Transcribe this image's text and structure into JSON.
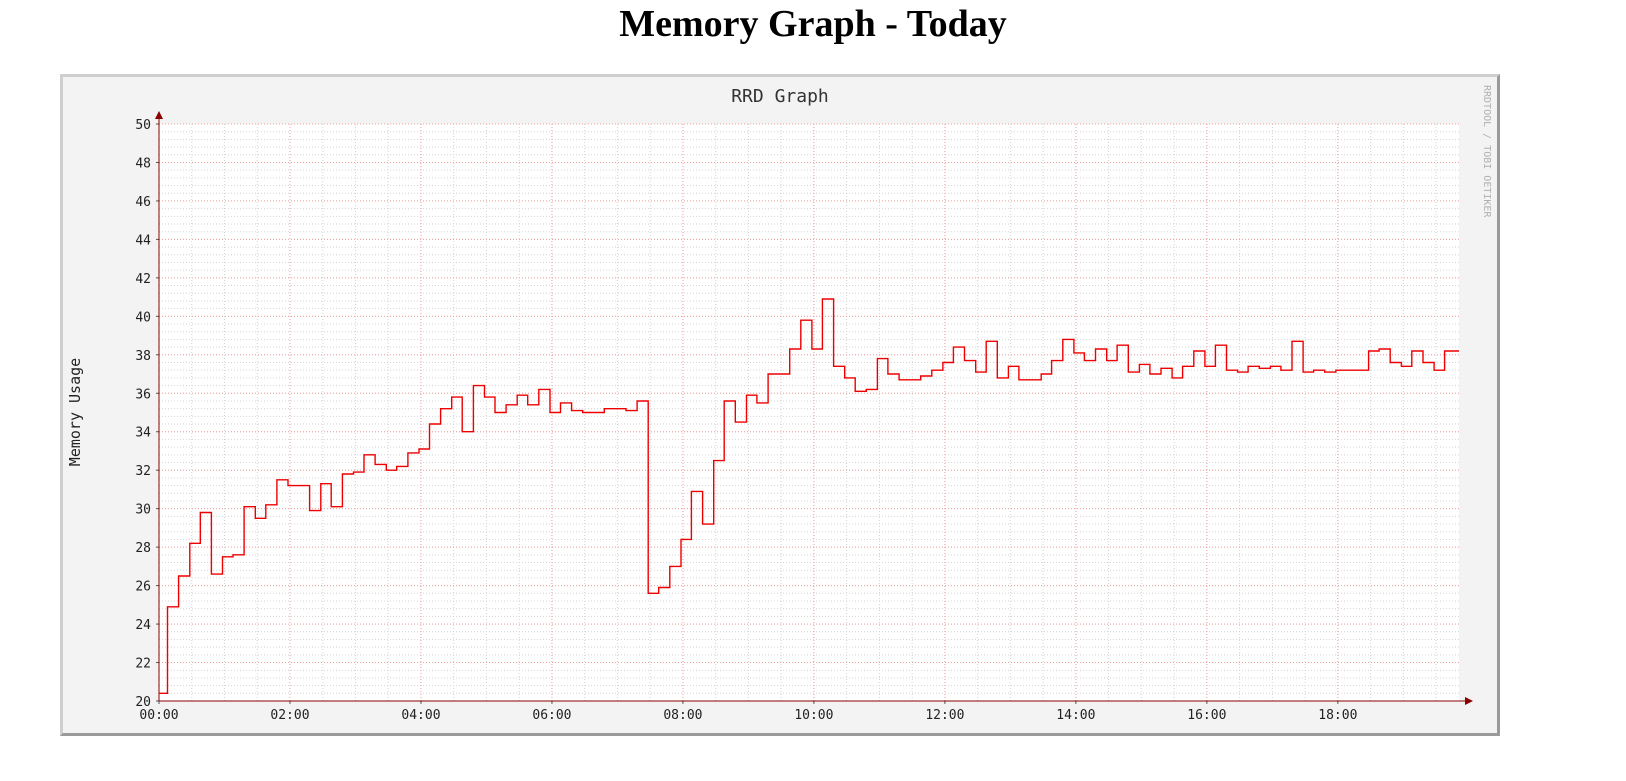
{
  "page": {
    "title": "Memory Graph - Today"
  },
  "chart_data": {
    "type": "line",
    "step": true,
    "title": "RRD Graph",
    "ylabel": "Memory Usage",
    "watermark": "RRDTOOL / TOBI OETIKER",
    "ylim": [
      20,
      50
    ],
    "xlim": [
      0,
      19.85
    ],
    "y_ticks": [
      20,
      22,
      24,
      26,
      28,
      30,
      32,
      34,
      36,
      38,
      40,
      42,
      44,
      46,
      48,
      50
    ],
    "x_ticks": [
      {
        "value": 0,
        "label": "00:00"
      },
      {
        "value": 2,
        "label": "02:00"
      },
      {
        "value": 4,
        "label": "04:00"
      },
      {
        "value": 6,
        "label": "06:00"
      },
      {
        "value": 8,
        "label": "08:00"
      },
      {
        "value": 10,
        "label": "10:00"
      },
      {
        "value": 12,
        "label": "12:00"
      },
      {
        "value": 14,
        "label": "14:00"
      },
      {
        "value": 16,
        "label": "16:00"
      },
      {
        "value": 18,
        "label": "18:00"
      }
    ],
    "grid": true,
    "line_color": "#ee0000",
    "grid_color": "#f2a0a0",
    "minor_grid_color": "#d4d4d4",
    "axis_color": "#8b0000",
    "series": [
      {
        "name": "",
        "x": [
          0.0,
          0.13,
          0.3,
          0.47,
          0.63,
          0.8,
          0.97,
          1.13,
          1.3,
          1.47,
          1.63,
          1.8,
          1.97,
          2.13,
          2.3,
          2.47,
          2.63,
          2.8,
          2.97,
          3.13,
          3.3,
          3.47,
          3.63,
          3.8,
          3.97,
          4.13,
          4.3,
          4.47,
          4.63,
          4.8,
          4.97,
          5.13,
          5.3,
          5.47,
          5.63,
          5.8,
          5.97,
          6.13,
          6.3,
          6.47,
          6.63,
          6.8,
          6.97,
          7.13,
          7.3,
          7.47,
          7.63,
          7.8,
          7.97,
          8.13,
          8.3,
          8.47,
          8.63,
          8.8,
          8.97,
          9.13,
          9.3,
          9.47,
          9.63,
          9.8,
          9.97,
          10.13,
          10.3,
          10.47,
          10.63,
          10.8,
          10.97,
          11.13,
          11.3,
          11.47,
          11.63,
          11.8,
          11.97,
          12.13,
          12.3,
          12.47,
          12.63,
          12.8,
          12.97,
          13.13,
          13.3,
          13.47,
          13.63,
          13.8,
          13.97,
          14.13,
          14.3,
          14.47,
          14.63,
          14.8,
          14.97,
          15.13,
          15.3,
          15.47,
          15.63,
          15.8,
          15.97,
          16.13,
          16.3,
          16.47,
          16.63,
          16.8,
          16.97,
          17.13,
          17.3,
          17.47,
          17.63,
          17.8,
          17.97,
          18.13,
          18.3,
          18.47,
          18.63,
          18.8,
          18.97,
          19.13,
          19.3,
          19.47,
          19.63,
          19.85
        ],
        "y": [
          20.4,
          24.9,
          26.5,
          28.2,
          29.8,
          26.6,
          27.5,
          27.6,
          30.1,
          29.5,
          30.2,
          31.5,
          31.2,
          31.2,
          29.9,
          31.3,
          30.1,
          31.8,
          31.9,
          32.8,
          32.3,
          32.0,
          32.2,
          32.9,
          33.1,
          34.4,
          35.2,
          35.8,
          34.0,
          36.4,
          35.8,
          35.0,
          35.4,
          35.9,
          35.4,
          36.2,
          35.0,
          35.5,
          35.1,
          35.0,
          35.0,
          35.2,
          35.2,
          35.1,
          35.6,
          25.6,
          25.9,
          27.0,
          28.4,
          30.9,
          29.2,
          32.5,
          35.6,
          34.5,
          35.9,
          35.5,
          37.0,
          37.0,
          38.3,
          39.8,
          38.3,
          40.9,
          37.4,
          36.8,
          36.1,
          36.2,
          37.8,
          37.0,
          36.7,
          36.7,
          36.9,
          37.2,
          37.6,
          38.4,
          37.7,
          37.1,
          38.7,
          36.8,
          37.4,
          36.7,
          36.7,
          37.0,
          37.7,
          38.8,
          38.1,
          37.7,
          38.3,
          37.7,
          38.5,
          37.1,
          37.5,
          37.0,
          37.3,
          36.8,
          37.4,
          38.2,
          37.4,
          38.5,
          37.2,
          37.1,
          37.4,
          37.3,
          37.4,
          37.2,
          38.7,
          37.1,
          37.2,
          37.1,
          37.2,
          37.2,
          37.2,
          38.2,
          38.3,
          37.6,
          37.4,
          38.2,
          37.6,
          37.2,
          38.2,
          38.2
        ]
      }
    ]
  }
}
